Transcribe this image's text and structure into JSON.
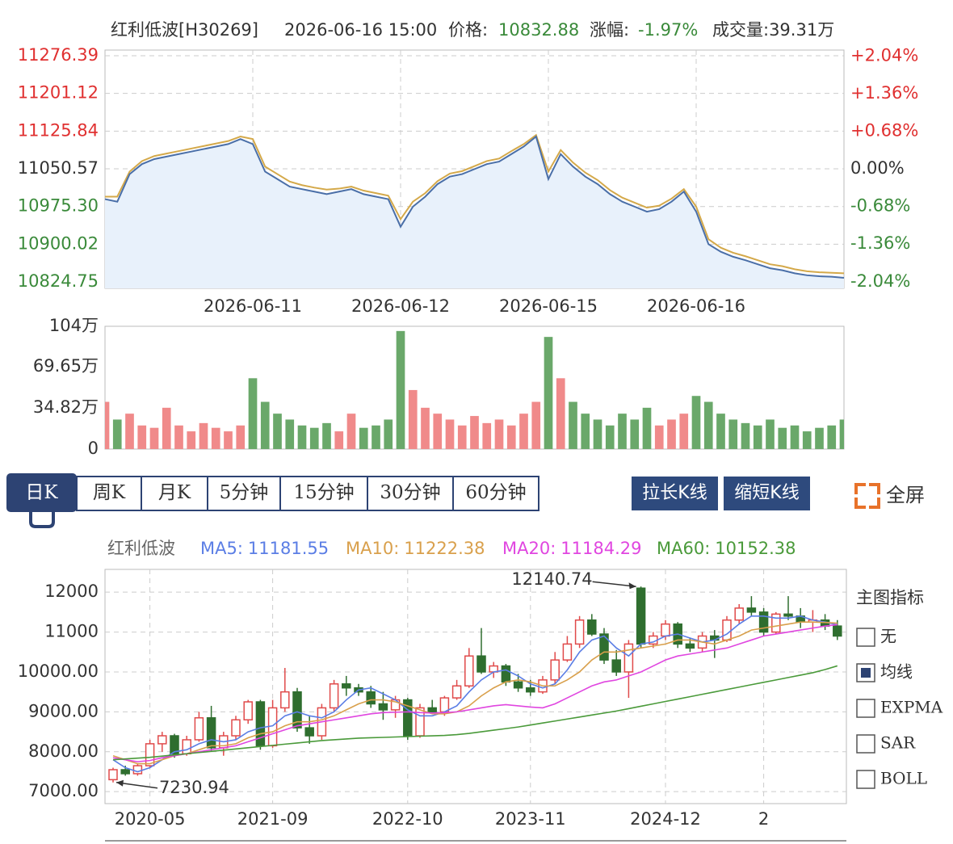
{
  "chart_data": [
    {
      "type": "line",
      "title": "红利低波[H30269]",
      "subtitle": "2026-06-16 15:00",
      "annotations": [
        "价格:",
        "10832.88",
        "涨幅:",
        "-1.97%",
        "成交量:39.31万"
      ],
      "categories": [
        null,
        null,
        null,
        null,
        null,
        null,
        null,
        null,
        null,
        null,
        null,
        null,
        "2026-06-11",
        null,
        null,
        null,
        null,
        null,
        null,
        null,
        null,
        null,
        null,
        null,
        "2026-06-12",
        null,
        null,
        null,
        null,
        null,
        null,
        null,
        null,
        null,
        null,
        null,
        "2026-06-15",
        null,
        null,
        null,
        null,
        null,
        null,
        null,
        null,
        null,
        null,
        null,
        "2026-06-16",
        null,
        null,
        null,
        null,
        null,
        null,
        null,
        null,
        null,
        null,
        null,
        null
      ],
      "series": [
        {
          "color": "#4a6fa8",
          "values": [
            10990,
            10985,
            11040,
            11060,
            11070,
            11075,
            11080,
            11085,
            11090,
            11095,
            11100,
            11110,
            11100,
            11045,
            11030,
            11015,
            11010,
            11005,
            11000,
            11005,
            11010,
            11000,
            10995,
            10990,
            10935,
            10975,
            10995,
            11020,
            11035,
            11040,
            11050,
            11060,
            11065,
            11080,
            11095,
            11115,
            11030,
            11080,
            11055,
            11035,
            11020,
            11000,
            10985,
            10975,
            10965,
            10970,
            10985,
            11005,
            10965,
            10900,
            10885,
            10875,
            10868,
            10860,
            10852,
            10848,
            10842,
            10838,
            10836,
            10835,
            10832.88
          ]
        },
        {
          "color": "#d4a94a",
          "values": [
            10995,
            10995,
            11045,
            11066,
            11076,
            11081,
            11086,
            11091,
            11096,
            11101,
            11106,
            11115,
            11110,
            11055,
            11040,
            11025,
            11018,
            11013,
            11009,
            11011,
            11015,
            11007,
            11002,
            10997,
            10950,
            10985,
            11002,
            11026,
            11041,
            11046,
            11056,
            11066,
            11071,
            11086,
            11100,
            11118,
            11045,
            11088,
            11063,
            11043,
            11028,
            11008,
            10993,
            10983,
            10973,
            10977,
            10991,
            11010,
            10975,
            10910,
            10893,
            10883,
            10876,
            10868,
            10860,
            10856,
            10850,
            10846,
            10844,
            10843,
            10842
          ]
        }
      ],
      "area_color": "#e8f1fb",
      "ylim": [
        10811.9,
        11287.7
      ],
      "yticks": [
        11276.39,
        11201.12,
        11125.84,
        11050.57,
        {
          "value": 10975.3,
          "label": "10975.30"
        },
        10900.02,
        10824.75
      ],
      "y2lim": [
        -2.16,
        2.146
      ],
      "y2ticks": [
        {
          "value": 2.04,
          "label": "+2.04%"
        },
        {
          "value": 1.36,
          "label": "+1.36%"
        },
        {
          "value": 0.68,
          "label": "+0.68%"
        },
        {
          "value": 0,
          "label": "0.00%"
        },
        {
          "value": -0.68,
          "label": "-0.68%"
        },
        {
          "value": -1.36,
          "label": "-1.36%"
        },
        {
          "value": -2.04,
          "label": "-2.04%"
        }
      ],
      "grid": true
    },
    {
      "type": "bar",
      "values": [
        40,
        25,
        30,
        20,
        18,
        35,
        20,
        15,
        22,
        18,
        15,
        20,
        60,
        40,
        30,
        25,
        20,
        18,
        22,
        15,
        30,
        18,
        20,
        25,
        100,
        50,
        35,
        30,
        25,
        20,
        28,
        22,
        25,
        20,
        30,
        40,
        95,
        60,
        40,
        30,
        25,
        20,
        30,
        25,
        35,
        20,
        25,
        30,
        45,
        40,
        30,
        25,
        22,
        20,
        25,
        18,
        20,
        15,
        18,
        20,
        25
      ],
      "colors": {
        "up": "#f08a8a",
        "down": "#6aa86a"
      },
      "ylim": [
        0,
        104
      ],
      "yticks": [
        {
          "value": 104,
          "label": "104万"
        },
        {
          "value": 69.65,
          "label": "69.65万"
        },
        {
          "value": 34.82,
          "label": "34.82万"
        },
        0
      ]
    },
    {
      "type": "candlestick",
      "title": "红利低波",
      "categories": [
        null,
        null,
        null,
        "2020-05",
        null,
        null,
        null,
        null,
        null,
        null,
        null,
        null,
        null,
        "2021-09",
        null,
        null,
        null,
        null,
        null,
        null,
        null,
        null,
        null,
        null,
        "2022-10",
        null,
        null,
        null,
        null,
        null,
        null,
        null,
        null,
        null,
        "2023-11",
        null,
        null,
        null,
        null,
        null,
        null,
        null,
        null,
        null,
        null,
        "2024-12",
        null,
        null,
        null,
        null,
        null,
        null,
        null,
        "2",
        null,
        null,
        null,
        null,
        null,
        null
      ],
      "ohlc": [
        [
          7300,
          7600,
          7230.94,
          7550
        ],
        [
          7550,
          7650,
          7400,
          7450
        ],
        [
          7450,
          7700,
          7400,
          7650
        ],
        [
          7650,
          8300,
          7600,
          8200
        ],
        [
          8200,
          8500,
          8000,
          8400
        ],
        [
          8400,
          8450,
          7850,
          7950
        ],
        [
          7950,
          8400,
          7900,
          8300
        ],
        [
          8300,
          9000,
          8250,
          8850
        ],
        [
          8850,
          9150,
          8000,
          8100
        ],
        [
          8100,
          8500,
          7900,
          8400
        ],
        [
          8400,
          8900,
          8300,
          8800
        ],
        [
          8800,
          9300,
          8700,
          9250
        ],
        [
          9250,
          9300,
          8050,
          8150
        ],
        [
          8150,
          9300,
          8100,
          9100
        ],
        [
          9100,
          10100,
          9000,
          9500
        ],
        [
          9500,
          9600,
          8500,
          8600
        ],
        [
          8600,
          8900,
          8200,
          8400
        ],
        [
          8400,
          9200,
          8300,
          9100
        ],
        [
          9100,
          9800,
          9000,
          9700
        ],
        [
          9700,
          9900,
          9400,
          9600
        ],
        [
          9600,
          9700,
          9400,
          9500
        ],
        [
          9500,
          9650,
          9100,
          9200
        ],
        [
          9200,
          9500,
          8800,
          9050
        ],
        [
          9050,
          9400,
          8850,
          9300
        ],
        [
          9300,
          9350,
          8300,
          8400
        ],
        [
          8400,
          9200,
          8350,
          9100
        ],
        [
          9100,
          9300,
          8950,
          9000
        ],
        [
          9000,
          9400,
          8900,
          9350
        ],
        [
          9350,
          9800,
          9300,
          9650
        ],
        [
          9650,
          10600,
          9600,
          10400
        ],
        [
          10400,
          11100,
          9950,
          10000
        ],
        [
          10000,
          10250,
          9850,
          10150
        ],
        [
          10150,
          10200,
          9650,
          9750
        ],
        [
          9750,
          9950,
          9500,
          9600
        ],
        [
          9600,
          9800,
          9400,
          9500
        ],
        [
          9500,
          9900,
          9450,
          9800
        ],
        [
          9800,
          10500,
          9700,
          10300
        ],
        [
          10300,
          10900,
          10250,
          10700
        ],
        [
          10700,
          11400,
          10600,
          11300
        ],
        [
          11300,
          11450,
          10900,
          10950
        ],
        [
          10950,
          11100,
          10200,
          10300
        ],
        [
          10300,
          10550,
          9900,
          10000
        ],
        [
          10000,
          10800,
          9350,
          10700
        ],
        [
          12100,
          12140.74,
          10600,
          10700
        ],
        [
          10700,
          11000,
          10600,
          10900
        ],
        [
          10900,
          11300,
          10800,
          11200
        ],
        [
          11200,
          11250,
          10600,
          10700
        ],
        [
          10700,
          10850,
          10500,
          10600
        ],
        [
          10600,
          11000,
          10500,
          10900
        ],
        [
          10900,
          11050,
          10350,
          10800
        ],
        [
          10800,
          11400,
          10750,
          11300
        ],
        [
          11300,
          11700,
          11200,
          11600
        ],
        [
          11600,
          11900,
          11400,
          11500
        ],
        [
          11500,
          11600,
          10900,
          11000
        ],
        [
          11000,
          11500,
          10950,
          11450
        ],
        [
          11450,
          11900,
          11300,
          11400
        ],
        [
          11400,
          11600,
          11100,
          11250
        ],
        [
          11250,
          11550,
          11000,
          11300
        ],
        [
          11300,
          11450,
          11050,
          11150
        ],
        [
          11150,
          11300,
          10800,
          10900
        ]
      ],
      "up_color": "#e04a4a",
      "down_color": "#2f6e2f",
      "series": [
        {
          "name": "MA5:",
          "color": "#5b7ee5",
          "values": [
            7800,
            7600,
            7500,
            7600,
            7800,
            8000,
            8050,
            8200,
            8300,
            8250,
            8300,
            8500,
            8600,
            8650,
            8900,
            9000,
            8900,
            8850,
            9000,
            9300,
            9550,
            9600,
            9450,
            9300,
            9050,
            8900,
            8900,
            9000,
            9150,
            9500,
            9800,
            10000,
            10050,
            9900,
            9700,
            9600,
            9700,
            10050,
            10500,
            10800,
            10900,
            10600,
            10400,
            10700,
            10750,
            10900,
            10950,
            10850,
            10750,
            10800,
            10950,
            11200,
            11400,
            11400,
            11350,
            11350,
            11400,
            11300,
            11250,
            11181.55
          ]
        },
        {
          "name": "MA10:",
          "color": "#d9a04c",
          "values": [
            7900,
            7800,
            7700,
            7700,
            7800,
            7900,
            7950,
            8050,
            8150,
            8150,
            8200,
            8350,
            8450,
            8500,
            8650,
            8750,
            8750,
            8800,
            8900,
            9050,
            9200,
            9300,
            9300,
            9250,
            9150,
            9050,
            8950,
            8950,
            9000,
            9150,
            9400,
            9600,
            9750,
            9800,
            9750,
            9650,
            9650,
            9800,
            10000,
            10300,
            10500,
            10500,
            10550,
            10600,
            10650,
            10700,
            10800,
            10800,
            10750,
            10700,
            10800,
            10900,
            11050,
            11100,
            11150,
            11200,
            11250,
            11250,
            11240,
            11222.38
          ]
        },
        {
          "name": "MA20:",
          "color": "#e046e0",
          "values": [
            7850,
            7800,
            7750,
            7780,
            7850,
            7900,
            7950,
            8000,
            8050,
            8100,
            8150,
            8250,
            8350,
            8450,
            8550,
            8650,
            8700,
            8750,
            8800,
            8850,
            8900,
            8950,
            8980,
            8990,
            9000,
            8980,
            8970,
            8980,
            9000,
            9050,
            9100,
            9150,
            9180,
            9150,
            9120,
            9100,
            9200,
            9350,
            9500,
            9650,
            9750,
            9800,
            9900,
            10000,
            10150,
            10300,
            10400,
            10450,
            10500,
            10550,
            10600,
            10700,
            10800,
            10900,
            10950,
            11000,
            11050,
            11100,
            11150,
            11184.29
          ]
        },
        {
          "name": "MA60:",
          "color": "#4a9a3a",
          "values": [
            7800,
            7820,
            7840,
            7860,
            7890,
            7920,
            7950,
            7980,
            8010,
            8040,
            8070,
            8100,
            8130,
            8160,
            8190,
            8220,
            8250,
            8280,
            8300,
            8320,
            8340,
            8350,
            8360,
            8370,
            8380,
            8390,
            8400,
            8410,
            8430,
            8460,
            8500,
            8540,
            8580,
            8620,
            8670,
            8720,
            8770,
            8820,
            8870,
            8920,
            8970,
            9020,
            9080,
            9140,
            9200,
            9260,
            9320,
            9380,
            9440,
            9500,
            9560,
            9620,
            9680,
            9740,
            9800,
            9860,
            9920,
            9980,
            10060,
            10152.38
          ]
        }
      ],
      "ylim": [
        6700,
        12570
      ],
      "yticks": [
        12000,
        11000,
        {
          "value": 10000,
          "label": "10000.00"
        },
        {
          "value": 9000,
          "label": "9000.00"
        },
        {
          "value": 8000,
          "label": "8000.00"
        },
        {
          "value": 7000,
          "label": "7000.00"
        }
      ],
      "grid": true
    }
  ],
  "tabs": {
    "items": [
      "日K",
      "周K",
      "月K",
      "5分钟",
      "15分钟",
      "30分钟",
      "60分钟"
    ],
    "selected": 0
  },
  "buttons": [
    "拉长K线",
    "缩短K线"
  ],
  "fullscreen": "全屏",
  "indicator_panel": {
    "title": "主图指标",
    "options": [
      {
        "label": "无",
        "checked": false
      },
      {
        "label": "均线",
        "checked": true
      },
      {
        "label": "EXPMA",
        "checked": false
      },
      {
        "label": "SAR",
        "checked": false
      },
      {
        "label": "BOLL",
        "checked": false
      }
    ]
  }
}
